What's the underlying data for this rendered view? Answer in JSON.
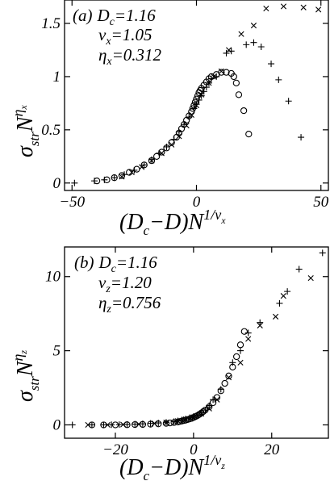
{
  "chart_data": [
    {
      "type": "scatter",
      "panel": "(a)",
      "annotations": [
        "(a)",
        "D",
        "c",
        "=1.16",
        "ν",
        "x",
        "=1.05",
        "η",
        "x",
        "=0.312"
      ],
      "xlabel": {
        "main": "(D",
        "sub1": "c",
        "mid": "−D)N",
        "sup": "1/ν",
        "supsub": "x"
      },
      "ylabel": {
        "main": "σ",
        "sub": "str",
        "mid": "N",
        "sup": "η",
        "supsub": "x"
      },
      "xlim": [
        -53,
        53
      ],
      "ylim": [
        -0.07,
        1.72
      ],
      "xticks": [
        -50,
        0,
        50
      ],
      "xtick_labels": [
        "−50",
        "0",
        "50"
      ],
      "yticks": [
        0,
        0.5,
        1,
        1.5
      ],
      "ytick_labels": [
        "0",
        "0.5",
        "1",
        "1.5"
      ],
      "series": [
        {
          "marker": "plus",
          "points": [
            [
              -49,
              0.0
            ],
            [
              -41,
              0.02
            ],
            [
              -37,
              0.03
            ],
            [
              -33,
              0.05
            ],
            [
              -29,
              0.08
            ],
            [
              -25,
              0.12
            ],
            [
              -21,
              0.17
            ],
            [
              -18,
              0.22
            ],
            [
              -15,
              0.28
            ],
            [
              -12,
              0.34
            ],
            [
              -9,
              0.41
            ],
            [
              -7,
              0.48
            ],
            [
              -5,
              0.55
            ],
            [
              -3,
              0.62
            ],
            [
              -1,
              0.7
            ],
            [
              0,
              0.74
            ],
            [
              1,
              0.78
            ],
            [
              2,
              0.82
            ],
            [
              3,
              0.86
            ],
            [
              4,
              0.9
            ],
            [
              5,
              0.94
            ],
            [
              6,
              0.98
            ],
            [
              8,
              1.0
            ],
            [
              12,
              1.22
            ],
            [
              14,
              1.24
            ],
            [
              20,
              1.3
            ],
            [
              23,
              1.32
            ],
            [
              26,
              1.28
            ],
            [
              30,
              1.12
            ],
            [
              33,
              0.97
            ],
            [
              37,
              0.77
            ],
            [
              42,
              0.43
            ]
          ]
        },
        {
          "marker": "cross",
          "points": [
            [
              -30,
              0.06
            ],
            [
              -26,
              0.1
            ],
            [
              -22,
              0.15
            ],
            [
              -18,
              0.21
            ],
            [
              -14,
              0.28
            ],
            [
              -10,
              0.36
            ],
            [
              -7,
              0.44
            ],
            [
              -4,
              0.54
            ],
            [
              -2,
              0.64
            ],
            [
              0,
              0.73
            ],
            [
              2,
              0.83
            ],
            [
              5,
              0.94
            ],
            [
              7,
              1.0
            ],
            [
              10,
              1.05
            ],
            [
              13,
              1.25
            ],
            [
              18,
              1.4
            ],
            [
              23,
              1.48
            ],
            [
              28,
              1.64
            ],
            [
              35,
              1.66
            ],
            [
              43,
              1.65
            ],
            [
              49,
              1.63
            ]
          ]
        },
        {
          "marker": "circle",
          "points": [
            [
              -40,
              0.02
            ],
            [
              -36,
              0.03
            ],
            [
              -33,
              0.05
            ],
            [
              -30,
              0.07
            ],
            [
              -27,
              0.1
            ],
            [
              -24,
              0.13
            ],
            [
              -21,
              0.17
            ],
            [
              -18,
              0.21
            ],
            [
              -16,
              0.25
            ],
            [
              -14,
              0.29
            ],
            [
              -12,
              0.33
            ],
            [
              -10,
              0.38
            ],
            [
              -8,
              0.43
            ],
            [
              -7,
              0.47
            ],
            [
              -6,
              0.51
            ],
            [
              -5,
              0.55
            ],
            [
              -4,
              0.59
            ],
            [
              -3,
              0.63
            ],
            [
              -2,
              0.67
            ],
            [
              -1.5,
              0.7
            ],
            [
              -1,
              0.73
            ],
            [
              -0.5,
              0.76
            ],
            [
              0,
              0.79
            ],
            [
              0.5,
              0.82
            ],
            [
              1,
              0.85
            ],
            [
              1.5,
              0.87
            ],
            [
              2,
              0.89
            ],
            [
              3,
              0.92
            ],
            [
              4,
              0.95
            ],
            [
              5,
              0.98
            ],
            [
              6,
              1.0
            ],
            [
              8,
              1.02
            ],
            [
              10,
              1.04
            ],
            [
              12,
              1.04
            ],
            [
              14,
              1.03
            ],
            [
              15,
              1.0
            ],
            [
              16,
              0.94
            ],
            [
              17,
              0.83
            ],
            [
              19,
              0.68
            ],
            [
              21,
              0.46
            ]
          ]
        }
      ]
    },
    {
      "type": "scatter",
      "panel": "(b)",
      "annotations": [
        "(b)",
        "D",
        "c",
        "=1.16",
        "ν",
        "z",
        "=1.20",
        "η",
        "z",
        "=0.756"
      ],
      "xlabel": {
        "main": "(D",
        "sub1": "c",
        "mid": "−D)N",
        "sup": "1/ν",
        "supsub": "z"
      },
      "ylabel": {
        "main": "σ",
        "sub": "str",
        "mid": "N",
        "sup": "η",
        "supsub": "z"
      },
      "xlim": [
        -33,
        34.5
      ],
      "ylim": [
        -0.9,
        12.0
      ],
      "xticks": [
        -20,
        0,
        20
      ],
      "xtick_labels": [
        "−20",
        "0",
        "20"
      ],
      "yticks": [
        0,
        5,
        10
      ],
      "ytick_labels": [
        "0",
        "5",
        "10"
      ],
      "series": [
        {
          "marker": "plus",
          "points": [
            [
              -31,
              0.0
            ],
            [
              -26,
              0.0
            ],
            [
              -23,
              0.0
            ],
            [
              -21,
              0.01
            ],
            [
              -19,
              0.02
            ],
            [
              -17,
              0.03
            ],
            [
              -15,
              0.05
            ],
            [
              -13,
              0.07
            ],
            [
              -11,
              0.1
            ],
            [
              -9,
              0.13
            ],
            [
              -7,
              0.17
            ],
            [
              -5,
              0.22
            ],
            [
              -4,
              0.27
            ],
            [
              -3,
              0.33
            ],
            [
              -2,
              0.4
            ],
            [
              -1,
              0.48
            ],
            [
              0,
              0.56
            ],
            [
              1,
              0.67
            ],
            [
              2,
              0.8
            ],
            [
              3,
              1.0
            ],
            [
              4,
              1.3
            ],
            [
              5,
              1.7
            ],
            [
              7,
              2.4
            ],
            [
              10,
              4.2
            ],
            [
              12,
              5.0
            ],
            [
              14,
              6.2
            ],
            [
              17,
              6.9
            ],
            [
              22,
              8.2
            ],
            [
              24,
              9.0
            ],
            [
              27,
              10.5
            ],
            [
              33,
              11.6
            ]
          ]
        },
        {
          "marker": "cross",
          "points": [
            [
              -27,
              0.0
            ],
            [
              -22,
              0.0
            ],
            [
              -18,
              0.02
            ],
            [
              -14,
              0.05
            ],
            [
              -10,
              0.1
            ],
            [
              -7,
              0.16
            ],
            [
              -4,
              0.26
            ],
            [
              -2,
              0.38
            ],
            [
              0,
              0.52
            ],
            [
              2,
              0.75
            ],
            [
              4,
              1.1
            ],
            [
              6,
              1.7
            ],
            [
              9,
              3.2
            ],
            [
              12,
              4.2
            ],
            [
              14,
              5.8
            ],
            [
              17,
              6.7
            ],
            [
              21,
              7.3
            ],
            [
              23,
              8.7
            ],
            [
              30,
              9.9
            ]
          ]
        },
        {
          "marker": "circle",
          "points": [
            [
              -26,
              0.0
            ],
            [
              -23,
              0.0
            ],
            [
              -20,
              0.0
            ],
            [
              -17,
              0.01
            ],
            [
              -15,
              0.02
            ],
            [
              -13,
              0.03
            ],
            [
              -11,
              0.05
            ],
            [
              -9,
              0.07
            ],
            [
              -7,
              0.1
            ],
            [
              -6,
              0.13
            ],
            [
              -5,
              0.16
            ],
            [
              -4,
              0.2
            ],
            [
              -3.5,
              0.23
            ],
            [
              -3,
              0.26
            ],
            [
              -2.5,
              0.29
            ],
            [
              -2,
              0.32
            ],
            [
              -1.5,
              0.36
            ],
            [
              -1,
              0.4
            ],
            [
              -0.5,
              0.44
            ],
            [
              0,
              0.5
            ],
            [
              0.5,
              0.56
            ],
            [
              1,
              0.63
            ],
            [
              1.5,
              0.71
            ],
            [
              2,
              0.8
            ],
            [
              2.5,
              0.9
            ],
            [
              3,
              1.0
            ],
            [
              4,
              1.22
            ],
            [
              5,
              1.5
            ],
            [
              6,
              1.85
            ],
            [
              7,
              2.3
            ],
            [
              8,
              2.8
            ],
            [
              9,
              3.3
            ],
            [
              10,
              3.9
            ],
            [
              11,
              4.6
            ],
            [
              12,
              5.4
            ],
            [
              13,
              6.3
            ]
          ]
        }
      ]
    }
  ]
}
